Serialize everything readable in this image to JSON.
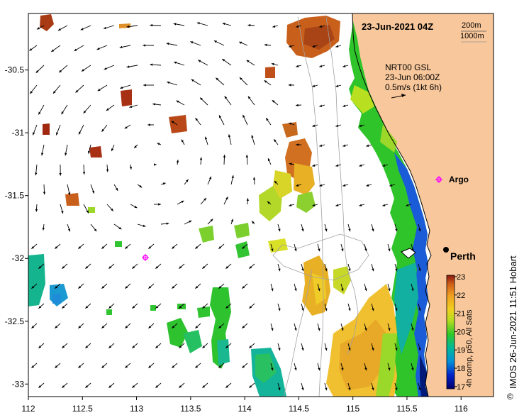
{
  "title_date": "23-Jun-2021 04Z",
  "isobaths": {
    "depth1": "200m",
    "depth2": "1000m"
  },
  "current_info": {
    "product": "NRT00 GSL",
    "time": "23-Jun 06:00Z",
    "scale": "0.5m/s (1kt 6h)"
  },
  "places": {
    "argo": "Argo",
    "perth": "Perth"
  },
  "colorbar": {
    "label": "4h comp, p50, All Sats",
    "ticks": [
      "23",
      "22",
      "21",
      "20",
      "19",
      "18",
      "17"
    ]
  },
  "footer": "IMOS 26-Jun-2021 11:51 Hobart",
  "copyright_symbol": "©",
  "axes": {
    "x_ticks": [
      "112",
      "112.5",
      "113",
      "113.5",
      "114",
      "114.5",
      "115",
      "115.5",
      "116"
    ],
    "y_ticks": [
      "-30.5",
      "-31",
      "-31.5",
      "-32",
      "-32.5",
      "-33"
    ],
    "lon_range": [
      112,
      116.3
    ],
    "lat_range": [
      -30.05,
      -33.1
    ]
  },
  "colors": {
    "land": "#f8c79b",
    "arrow": "#000000",
    "argo_marker": "#ff00ff",
    "coastline": "#000000",
    "isobath": "#a0a0a0"
  }
}
